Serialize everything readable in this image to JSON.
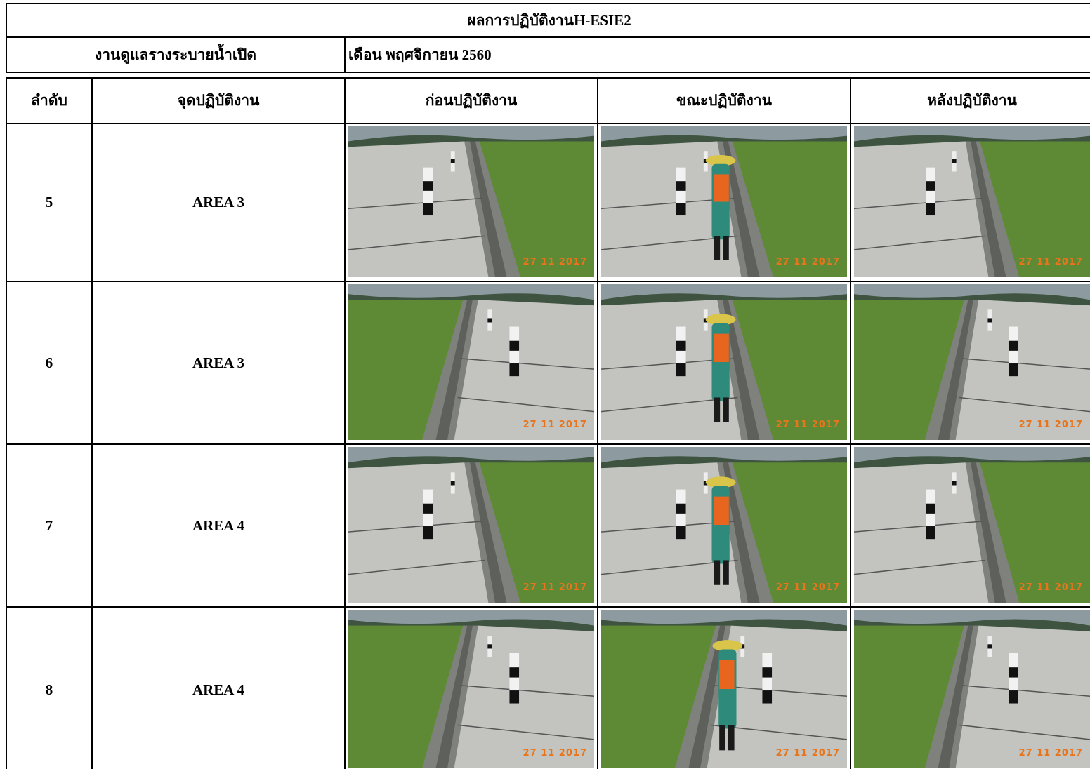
{
  "header": {
    "title": "ผลการปฏิบัติงานH-ESIE2"
  },
  "subheader": {
    "task": "งานดูแลรางระบายน้ำเปิด",
    "month": "เดือน พฤศจิกายน 2560"
  },
  "table": {
    "columns": [
      "ลำดับ",
      "จุดปฏิบัติงาน",
      "ก่อนปฏิบัติงาน",
      "ขณะปฏิบัติงาน",
      "หลังปฏิบัติงาน"
    ],
    "rows": [
      [
        "5",
        "AREA 3"
      ],
      [
        "6",
        "AREA 3"
      ],
      [
        "7",
        "AREA 4"
      ],
      [
        "8",
        "AREA 4"
      ]
    ]
  },
  "photos": {
    "stamps": [
      [
        "27 11 2017",
        "27 11 2017",
        "27 11 2017"
      ],
      [
        "27 11 2017",
        "27 11 2017",
        "27 11 2017"
      ],
      [
        "27 11 2017",
        "27 11 2017",
        "27 11 2017"
      ],
      [
        "27 11 2017",
        "27 11 2017",
        "27 11 2017"
      ]
    ]
  }
}
